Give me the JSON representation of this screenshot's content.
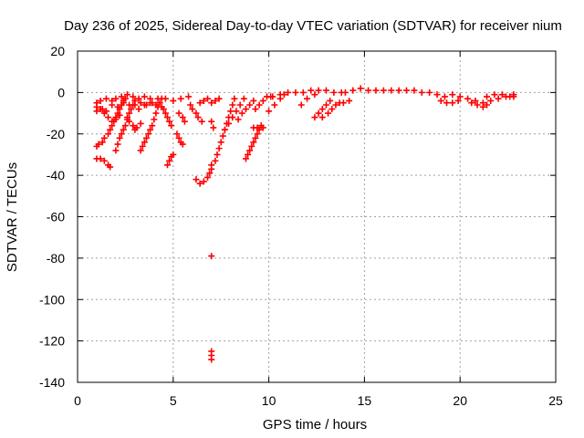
{
  "chart_data": {
    "type": "scatter",
    "title": "Day 236 of 2025, Sidereal Day-to-day VTEC variation (SDTVAR) for receiver nium",
    "xlabel": "GPS time / hours",
    "ylabel": "SDTVAR / TECUs",
    "xlim": [
      0,
      25
    ],
    "ylim": [
      -140,
      20
    ],
    "xticks": [
      0,
      5,
      10,
      15,
      20,
      25
    ],
    "yticks": [
      20,
      0,
      -20,
      -40,
      -60,
      -80,
      -100,
      -120,
      -140
    ],
    "grid": true,
    "marker": "plus",
    "color": "#ff0000",
    "series": [
      {
        "name": "SDTVAR",
        "points": [
          [
            1.0,
            -5
          ],
          [
            1.2,
            -4
          ],
          [
            1.5,
            -3
          ],
          [
            1.8,
            -4
          ],
          [
            2.0,
            -3
          ],
          [
            2.3,
            -2
          ],
          [
            2.6,
            -1
          ],
          [
            2.9,
            -2
          ],
          [
            3.2,
            -3
          ],
          [
            3.5,
            -2
          ],
          [
            3.8,
            -3
          ],
          [
            4.2,
            -3
          ],
          [
            4.6,
            -3
          ],
          [
            5.0,
            -4
          ],
          [
            5.4,
            -3
          ],
          [
            5.8,
            -2
          ],
          [
            1.0,
            -7
          ],
          [
            1.0,
            -9
          ],
          [
            1.2,
            -8
          ],
          [
            1.5,
            -9
          ],
          [
            1.8,
            -6
          ],
          [
            2.1,
            -7
          ],
          [
            2.4,
            -5
          ],
          [
            2.7,
            -6
          ],
          [
            3.0,
            -6
          ],
          [
            3.3,
            -5
          ],
          [
            3.6,
            -6
          ],
          [
            3.9,
            -5
          ],
          [
            1.0,
            -26
          ],
          [
            1.1,
            -25
          ],
          [
            1.3,
            -24
          ],
          [
            1.4,
            -22
          ],
          [
            1.6,
            -20
          ],
          [
            1.7,
            -18
          ],
          [
            1.8,
            -16
          ],
          [
            1.9,
            -14
          ],
          [
            2.0,
            -12
          ],
          [
            2.1,
            -10
          ],
          [
            2.2,
            -8
          ],
          [
            2.3,
            -6
          ],
          [
            2.4,
            -4
          ],
          [
            2.5,
            -3
          ],
          [
            1.0,
            -32
          ],
          [
            1.2,
            -32
          ],
          [
            1.4,
            -33
          ],
          [
            1.6,
            -35
          ],
          [
            1.7,
            -36
          ],
          [
            1.3,
            -8
          ],
          [
            1.4,
            -10
          ],
          [
            1.6,
            -12
          ],
          [
            1.8,
            -14
          ],
          [
            2.0,
            -13
          ],
          [
            2.2,
            -11
          ],
          [
            2.0,
            -28
          ],
          [
            2.1,
            -25
          ],
          [
            2.2,
            -22
          ],
          [
            2.3,
            -20
          ],
          [
            2.4,
            -18
          ],
          [
            2.5,
            -16
          ],
          [
            2.6,
            -13
          ],
          [
            2.7,
            -10
          ],
          [
            2.8,
            -8
          ],
          [
            2.9,
            -6
          ],
          [
            3.0,
            -4
          ],
          [
            2.6,
            -12
          ],
          [
            2.7,
            -14
          ],
          [
            2.9,
            -16
          ],
          [
            3.0,
            -18
          ],
          [
            3.1,
            -17
          ],
          [
            3.3,
            -15
          ],
          [
            3.3,
            -28
          ],
          [
            3.4,
            -26
          ],
          [
            3.5,
            -24
          ],
          [
            3.6,
            -22
          ],
          [
            3.7,
            -20
          ],
          [
            3.8,
            -18
          ],
          [
            3.9,
            -16
          ],
          [
            4.0,
            -13
          ],
          [
            4.1,
            -10
          ],
          [
            4.2,
            -7
          ],
          [
            4.3,
            -5
          ],
          [
            4.4,
            -3
          ],
          [
            3.2,
            -8
          ],
          [
            3.5,
            -6
          ],
          [
            3.8,
            -5
          ],
          [
            4.1,
            -6
          ],
          [
            4.4,
            -7
          ],
          [
            4.7,
            -35
          ],
          [
            4.8,
            -33
          ],
          [
            4.9,
            -31
          ],
          [
            5.0,
            -30
          ],
          [
            4.5,
            -8
          ],
          [
            4.6,
            -10
          ],
          [
            4.7,
            -12
          ],
          [
            4.8,
            -14
          ],
          [
            4.9,
            -16
          ],
          [
            5.2,
            -20
          ],
          [
            5.3,
            -22
          ],
          [
            5.4,
            -24
          ],
          [
            5.5,
            -25
          ],
          [
            5.3,
            -10
          ],
          [
            5.5,
            -12
          ],
          [
            5.6,
            -14
          ],
          [
            5.9,
            -6
          ],
          [
            6.0,
            -8
          ],
          [
            6.2,
            -10
          ],
          [
            6.3,
            -12
          ],
          [
            6.5,
            -14
          ],
          [
            6.2,
            -42
          ],
          [
            6.4,
            -44
          ],
          [
            6.6,
            -43
          ],
          [
            6.8,
            -41
          ],
          [
            6.9,
            -39
          ],
          [
            7.0,
            -37
          ],
          [
            7.0,
            -35
          ],
          [
            6.4,
            -5
          ],
          [
            6.6,
            -4
          ],
          [
            6.8,
            -3
          ],
          [
            7.0,
            -5
          ],
          [
            7.2,
            -4
          ],
          [
            7.4,
            -3
          ],
          [
            7.0,
            -14
          ],
          [
            7.1,
            -17
          ],
          [
            7.0,
            -79
          ],
          [
            7.0,
            -125
          ],
          [
            7.0,
            -127
          ],
          [
            7.0,
            -129
          ],
          [
            7.2,
            -33
          ],
          [
            7.3,
            -30
          ],
          [
            7.4,
            -27
          ],
          [
            7.5,
            -24
          ],
          [
            7.6,
            -21
          ],
          [
            7.7,
            -18
          ],
          [
            7.8,
            -15
          ],
          [
            7.9,
            -12
          ],
          [
            8.0,
            -9
          ],
          [
            8.1,
            -6
          ],
          [
            8.2,
            -3
          ],
          [
            7.7,
            -18
          ],
          [
            7.9,
            -15
          ],
          [
            8.1,
            -12
          ],
          [
            8.3,
            -9
          ],
          [
            8.5,
            -6
          ],
          [
            8.7,
            -3
          ],
          [
            8.4,
            -13
          ],
          [
            8.6,
            -10
          ],
          [
            8.8,
            -8
          ],
          [
            9.0,
            -6
          ],
          [
            9.2,
            -4
          ],
          [
            8.8,
            -32
          ],
          [
            8.9,
            -30
          ],
          [
            9.0,
            -28
          ],
          [
            9.1,
            -26
          ],
          [
            9.2,
            -24
          ],
          [
            9.3,
            -22
          ],
          [
            9.4,
            -20
          ],
          [
            9.5,
            -18
          ],
          [
            9.6,
            -16
          ],
          [
            9.2,
            -17
          ],
          [
            9.4,
            -17
          ],
          [
            9.7,
            -17
          ],
          [
            9.3,
            -8
          ],
          [
            9.5,
            -6
          ],
          [
            9.7,
            -4
          ],
          [
            9.9,
            -2
          ],
          [
            10.1,
            -2
          ],
          [
            10.2,
            -2
          ],
          [
            10.6,
            -1
          ],
          [
            11.0,
            0
          ],
          [
            11.4,
            0
          ],
          [
            11.8,
            0
          ],
          [
            12.2,
            1
          ],
          [
            12.6,
            1
          ],
          [
            13.0,
            1
          ],
          [
            13.4,
            0
          ],
          [
            13.8,
            0
          ],
          [
            10.0,
            -9
          ],
          [
            10.3,
            -6
          ],
          [
            10.6,
            -3
          ],
          [
            10.8,
            -1
          ],
          [
            11.7,
            -6
          ],
          [
            12.0,
            -3
          ],
          [
            12.4,
            -1
          ],
          [
            12.4,
            -12
          ],
          [
            12.6,
            -10
          ],
          [
            12.8,
            -8
          ],
          [
            13.0,
            -6
          ],
          [
            13.2,
            -4
          ],
          [
            12.8,
            -12
          ],
          [
            13.1,
            -10
          ],
          [
            13.3,
            -8
          ],
          [
            13.5,
            -6
          ],
          [
            13.7,
            -5
          ],
          [
            13.9,
            -5
          ],
          [
            14.2,
            -4
          ],
          [
            14.0,
            0
          ],
          [
            14.4,
            1
          ],
          [
            14.8,
            2
          ],
          [
            15.2,
            1
          ],
          [
            15.6,
            1
          ],
          [
            16.0,
            1
          ],
          [
            16.4,
            1
          ],
          [
            16.8,
            1
          ],
          [
            17.2,
            1
          ],
          [
            17.6,
            1
          ],
          [
            18.0,
            0
          ],
          [
            18.4,
            0
          ],
          [
            18.8,
            -1
          ],
          [
            19.2,
            -2
          ],
          [
            19.6,
            -1
          ],
          [
            20.0,
            -2
          ],
          [
            20.4,
            -3
          ],
          [
            20.8,
            -4
          ],
          [
            21.2,
            -5
          ],
          [
            21.6,
            -4
          ],
          [
            22.0,
            -3
          ],
          [
            22.4,
            -2
          ],
          [
            22.8,
            -2
          ],
          [
            19.0,
            -4
          ],
          [
            19.3,
            -5
          ],
          [
            19.6,
            -5
          ],
          [
            19.9,
            -4
          ],
          [
            20.6,
            -5
          ],
          [
            20.9,
            -6
          ],
          [
            21.2,
            -7
          ],
          [
            21.4,
            -6
          ],
          [
            21.4,
            -2
          ],
          [
            21.8,
            -1
          ],
          [
            22.2,
            -1
          ],
          [
            22.6,
            -2
          ],
          [
            22.8,
            -1
          ]
        ]
      }
    ]
  }
}
